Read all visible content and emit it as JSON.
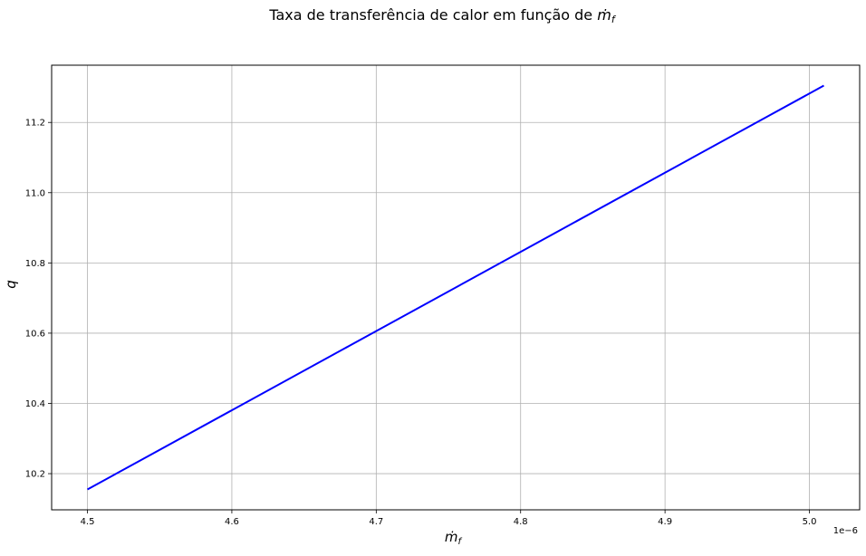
{
  "chart_data": {
    "type": "line",
    "title_prefix": "Taxa de transferência de calor em função de ",
    "title_symbol": "ṁ",
    "title_subscript": "f",
    "xlabel_symbol": "ṁ",
    "xlabel_subscript": "f",
    "ylabel": "q",
    "x_offset_label": "1e−6",
    "xlim": [
      4.4752e-06,
      5.0348e-06
    ],
    "ylim": [
      10.097,
      11.363
    ],
    "xticks": [
      4.5e-06,
      4.6e-06,
      4.7e-06,
      4.8e-06,
      4.9e-06,
      5e-06
    ],
    "xtick_labels": [
      "4.5",
      "4.6",
      "4.7",
      "4.8",
      "4.9",
      "5.0"
    ],
    "yticks": [
      10.2,
      10.4,
      10.6,
      10.8,
      11.0,
      11.2
    ],
    "ytick_labels": [
      "10.2",
      "10.4",
      "10.6",
      "10.8",
      "11.0",
      "11.2"
    ],
    "grid": true,
    "series": [
      {
        "color": "#0000ff",
        "x": [
          4.5e-06,
          5.01e-06
        ],
        "y": [
          10.155,
          11.305
        ]
      }
    ]
  }
}
